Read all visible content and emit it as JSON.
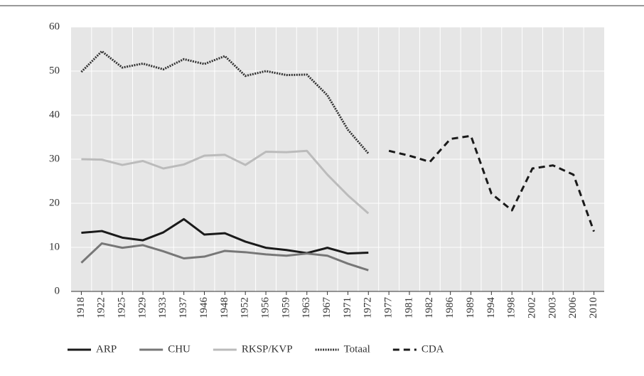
{
  "chart_data": {
    "type": "line",
    "categories": [
      "1918",
      "1922",
      "1925",
      "1929",
      "1933",
      "1937",
      "1946",
      "1948",
      "1952",
      "1956",
      "1959",
      "1963",
      "1967",
      "1971",
      "1972",
      "1977",
      "1981",
      "1982",
      "1986",
      "1989",
      "1994",
      "1998",
      "2002",
      "2003",
      "2006",
      "2010"
    ],
    "series": [
      {
        "name": "ARP",
        "color": "#1a1a1a",
        "dash": "solid",
        "values": [
          13.3,
          13.7,
          12.2,
          11.6,
          13.4,
          16.4,
          12.9,
          13.2,
          11.3,
          9.9,
          9.4,
          8.7,
          9.9,
          8.6,
          8.8,
          null,
          null,
          null,
          null,
          null,
          null,
          null,
          null,
          null,
          null,
          null
        ]
      },
      {
        "name": "CHU",
        "color": "#777777",
        "dash": "solid",
        "values": [
          6.5,
          10.9,
          9.9,
          10.5,
          9.1,
          7.5,
          7.9,
          9.2,
          8.9,
          8.4,
          8.1,
          8.6,
          8.1,
          6.3,
          4.8,
          null,
          null,
          null,
          null,
          null,
          null,
          null,
          null,
          null,
          null,
          null
        ]
      },
      {
        "name": "RKSP/KVP",
        "color": "#bbbbbb",
        "dash": "solid",
        "values": [
          30.0,
          29.9,
          28.7,
          29.6,
          27.9,
          28.8,
          30.8,
          31.0,
          28.7,
          31.7,
          31.6,
          31.9,
          26.5,
          21.8,
          17.7,
          null,
          null,
          null,
          null,
          null,
          null,
          null,
          null,
          null,
          null,
          null
        ]
      },
      {
        "name": "Totaal",
        "color": "#333333",
        "dash": "dotted",
        "values": [
          49.8,
          54.5,
          50.8,
          51.7,
          50.4,
          52.7,
          51.6,
          53.4,
          48.9,
          50.0,
          49.1,
          49.2,
          44.5,
          36.7,
          31.3,
          null,
          null,
          null,
          null,
          null,
          null,
          null,
          null,
          null,
          null,
          null
        ]
      },
      {
        "name": "CDA",
        "color": "#1a1a1a",
        "dash": "dashed",
        "values": [
          null,
          null,
          null,
          null,
          null,
          null,
          null,
          null,
          null,
          null,
          null,
          null,
          null,
          null,
          null,
          31.9,
          30.8,
          29.4,
          34.6,
          35.3,
          22.2,
          18.4,
          27.9,
          28.6,
          26.5,
          13.6
        ]
      }
    ],
    "ylim": [
      0,
      60
    ],
    "yticks": [
      0,
      10,
      20,
      30,
      40,
      50,
      60
    ],
    "grid": true
  }
}
